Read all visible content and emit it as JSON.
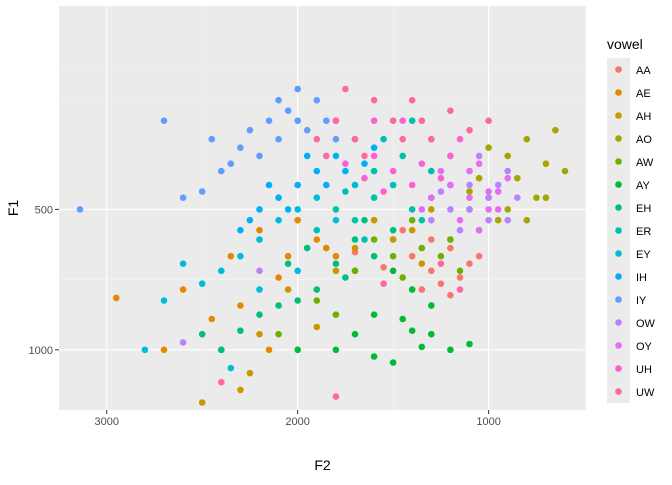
{
  "chart_data": {
    "type": "scatter",
    "title": "",
    "xlabel": "F2",
    "ylabel": "F1",
    "x_axis": {
      "reversed": true,
      "range": [
        3250,
        490
      ],
      "ticks": [
        3000,
        2000,
        1000
      ],
      "tick_labels": [
        "3000",
        "2000",
        "1000"
      ]
    },
    "y_axis": {
      "scale": "reciprocal",
      "reversed": true,
      "range": [
        290,
        1750
      ],
      "ticks": [
        500,
        1000
      ],
      "tick_labels": [
        "500",
        "1000"
      ],
      "minor_ticks": [
        357,
        333.3,
        666.7,
        2000
      ]
    },
    "grid": true,
    "legend": {
      "title": "vowel",
      "placement": "right",
      "entries": [
        {
          "name": "AA",
          "color": "#F8766D"
        },
        {
          "name": "AE",
          "color": "#E58700"
        },
        {
          "name": "AH",
          "color": "#C99800"
        },
        {
          "name": "AO",
          "color": "#A3A500"
        },
        {
          "name": "AW",
          "color": "#6BB100"
        },
        {
          "name": "AY",
          "color": "#00BA38"
        },
        {
          "name": "EH",
          "color": "#00BF7D"
        },
        {
          "name": "ER",
          "color": "#00C0AF"
        },
        {
          "name": "EY",
          "color": "#00BCD8"
        },
        {
          "name": "IH",
          "color": "#00B0F6"
        },
        {
          "name": "IY",
          "color": "#619CFF"
        },
        {
          "name": "OW",
          "color": "#B983FF"
        },
        {
          "name": "OY",
          "color": "#E76BF3"
        },
        {
          "name": "UH",
          "color": "#FD61D1"
        },
        {
          "name": "UW",
          "color": "#FF67A4"
        }
      ]
    },
    "series": [
      {
        "name": "AA",
        "points": [
          [
            1500,
            560
          ],
          [
            1400,
            600
          ],
          [
            1300,
            640
          ],
          [
            1200,
            580
          ],
          [
            1100,
            620
          ],
          [
            1600,
            520
          ],
          [
            1350,
            700
          ],
          [
            1250,
            680
          ],
          [
            1450,
            540
          ],
          [
            1150,
            660
          ],
          [
            1050,
            600
          ],
          [
            1700,
            590
          ],
          [
            1550,
            630
          ],
          [
            1300,
            560
          ],
          [
            1200,
            720
          ]
        ]
      },
      {
        "name": "AE",
        "points": [
          [
            1900,
            560
          ],
          [
            1800,
            600
          ],
          [
            2000,
            520
          ],
          [
            2200,
            540
          ],
          [
            2350,
            600
          ],
          [
            2600,
            700
          ],
          [
            2700,
            1000
          ],
          [
            2950,
            730
          ],
          [
            2100,
            660
          ],
          [
            1700,
            640
          ],
          [
            2300,
            760
          ],
          [
            2450,
            820
          ],
          [
            2150,
            1000
          ],
          [
            1850,
            580
          ],
          [
            2050,
            600
          ]
        ]
      },
      {
        "name": "AH",
        "points": [
          [
            1600,
            520
          ],
          [
            1500,
            560
          ],
          [
            1400,
            540
          ],
          [
            1700,
            580
          ],
          [
            1800,
            640
          ],
          [
            2050,
            700
          ],
          [
            2300,
            1400
          ],
          [
            2500,
            1600
          ],
          [
            2400,
            1000
          ],
          [
            2200,
            900
          ],
          [
            1300,
            500
          ],
          [
            1200,
            560
          ],
          [
            1900,
            860
          ],
          [
            2250,
            1200
          ],
          [
            1350,
            620
          ]
        ]
      },
      {
        "name": "AO",
        "points": [
          [
            900,
            420
          ],
          [
            850,
            450
          ],
          [
            800,
            400
          ],
          [
            700,
            430
          ],
          [
            750,
            480
          ],
          [
            600,
            440
          ],
          [
            950,
            520
          ],
          [
            1000,
            480
          ],
          [
            650,
            390
          ],
          [
            1050,
            450
          ],
          [
            800,
            520
          ],
          [
            900,
            500
          ],
          [
            1100,
            470
          ],
          [
            1000,
            410
          ],
          [
            700,
            480
          ]
        ]
      },
      {
        "name": "AW",
        "points": [
          [
            1400,
            520
          ],
          [
            1300,
            480
          ],
          [
            1200,
            560
          ],
          [
            1100,
            500
          ],
          [
            1500,
            600
          ],
          [
            1600,
            560
          ],
          [
            1700,
            640
          ],
          [
            1900,
            740
          ],
          [
            2100,
            900
          ],
          [
            1800,
            800
          ],
          [
            1250,
            600
          ],
          [
            1150,
            640
          ],
          [
            1350,
            580
          ],
          [
            1450,
            660
          ],
          [
            1050,
            540
          ]
        ]
      },
      {
        "name": "AY",
        "points": [
          [
            1500,
            640
          ],
          [
            1400,
            700
          ],
          [
            1300,
            760
          ],
          [
            1600,
            800
          ],
          [
            1700,
            900
          ],
          [
            1800,
            1000
          ],
          [
            1500,
            1100
          ],
          [
            1400,
            880
          ],
          [
            1300,
            900
          ],
          [
            1200,
            1000
          ],
          [
            1100,
            960
          ],
          [
            1600,
            1050
          ],
          [
            2000,
            1000
          ],
          [
            1450,
            820
          ],
          [
            1350,
            980
          ]
        ]
      },
      {
        "name": "EH",
        "points": [
          [
            1700,
            560
          ],
          [
            1600,
            600
          ],
          [
            1800,
            620
          ],
          [
            1900,
            700
          ],
          [
            2000,
            740
          ],
          [
            2200,
            800
          ],
          [
            2400,
            1000
          ],
          [
            2500,
            900
          ],
          [
            1500,
            540
          ],
          [
            1750,
            660
          ],
          [
            2100,
            760
          ],
          [
            2300,
            880
          ],
          [
            2050,
            620
          ],
          [
            1650,
            520
          ],
          [
            1950,
            580
          ]
        ]
      },
      {
        "name": "ER",
        "points": [
          [
            1500,
            460
          ],
          [
            1600,
            480
          ],
          [
            1400,
            500
          ],
          [
            1700,
            520
          ],
          [
            1300,
            440
          ],
          [
            1550,
            400
          ],
          [
            1800,
            500
          ],
          [
            1650,
            560
          ],
          [
            1450,
            420
          ],
          [
            1750,
            470
          ],
          [
            1350,
            520
          ],
          [
            1200,
            460
          ],
          [
            1600,
            440
          ],
          [
            1900,
            540
          ],
          [
            1400,
            380
          ]
        ]
      },
      {
        "name": "EY",
        "points": [
          [
            2000,
            500
          ],
          [
            2100,
            520
          ],
          [
            2200,
            560
          ],
          [
            1900,
            480
          ],
          [
            2300,
            600
          ],
          [
            2400,
            640
          ],
          [
            2500,
            680
          ],
          [
            2600,
            620
          ],
          [
            2700,
            740
          ],
          [
            2800,
            1000
          ],
          [
            2200,
            700
          ],
          [
            2000,
            640
          ],
          [
            1800,
            520
          ],
          [
            1700,
            460
          ],
          [
            2350,
            1150
          ]
        ]
      },
      {
        "name": "IH",
        "points": [
          [
            2000,
            460
          ],
          [
            1900,
            440
          ],
          [
            2100,
            480
          ],
          [
            1800,
            420
          ],
          [
            2200,
            500
          ],
          [
            1700,
            400
          ],
          [
            2300,
            540
          ],
          [
            1850,
            460
          ],
          [
            2050,
            500
          ],
          [
            1950,
            420
          ],
          [
            1750,
            440
          ],
          [
            2150,
            460
          ],
          [
            1650,
            430
          ],
          [
            2250,
            520
          ],
          [
            1600,
            410
          ]
        ]
      },
      {
        "name": "IY",
        "points": [
          [
            2000,
            380
          ],
          [
            2100,
            400
          ],
          [
            2200,
            420
          ],
          [
            2300,
            410
          ],
          [
            1900,
            360
          ],
          [
            2000,
            350
          ],
          [
            2400,
            440
          ],
          [
            2500,
            470
          ],
          [
            2600,
            480
          ],
          [
            2700,
            380
          ],
          [
            2050,
            370
          ],
          [
            1950,
            390
          ],
          [
            2150,
            380
          ],
          [
            3140,
            500
          ],
          [
            2250,
            390
          ],
          [
            1850,
            380
          ],
          [
            2350,
            430
          ],
          [
            2100,
            360
          ],
          [
            2450,
            400
          ],
          [
            1800,
            400
          ]
        ]
      },
      {
        "name": "OW",
        "points": [
          [
            1100,
            460
          ],
          [
            1000,
            480
          ],
          [
            900,
            440
          ],
          [
            1200,
            500
          ],
          [
            1300,
            520
          ],
          [
            1000,
            520
          ],
          [
            950,
            460
          ],
          [
            1050,
            420
          ],
          [
            1150,
            540
          ],
          [
            850,
            480
          ],
          [
            2600,
            950
          ],
          [
            2200,
            640
          ],
          [
            1100,
            500
          ],
          [
            1250,
            470
          ],
          [
            900,
            520
          ]
        ]
      },
      {
        "name": "OY",
        "points": [
          [
            1200,
            460
          ],
          [
            1100,
            440
          ],
          [
            1000,
            500
          ],
          [
            1300,
            480
          ],
          [
            1050,
            430
          ],
          [
            950,
            470
          ],
          [
            1150,
            520
          ],
          [
            1250,
            440
          ],
          [
            1000,
            470
          ],
          [
            900,
            450
          ],
          [
            1350,
            500
          ],
          [
            1100,
            480
          ],
          [
            1200,
            420
          ],
          [
            1050,
            540
          ],
          [
            950,
            500
          ]
        ]
      },
      {
        "name": "UH",
        "points": [
          [
            1500,
            440
          ],
          [
            1400,
            460
          ],
          [
            1600,
            420
          ],
          [
            1300,
            400
          ],
          [
            1700,
            400
          ],
          [
            1200,
            420
          ],
          [
            1450,
            380
          ],
          [
            1550,
            470
          ],
          [
            1350,
            430
          ],
          [
            1650,
            450
          ],
          [
            1250,
            450
          ],
          [
            1750,
            430
          ],
          [
            1150,
            400
          ],
          [
            1800,
            380
          ],
          [
            1600,
            380
          ]
        ]
      },
      {
        "name": "UW",
        "points": [
          [
            1700,
            400
          ],
          [
            1800,
            380
          ],
          [
            1600,
            360
          ],
          [
            1900,
            400
          ],
          [
            1500,
            380
          ],
          [
            1400,
            360
          ],
          [
            1300,
            400
          ],
          [
            1200,
            370
          ],
          [
            1100,
            390
          ],
          [
            1000,
            380
          ],
          [
            1750,
            350
          ],
          [
            1650,
            420
          ],
          [
            1850,
            420
          ],
          [
            1450,
            400
          ],
          [
            1350,
            380
          ],
          [
            1800,
            1500
          ],
          [
            2400,
            1300
          ],
          [
            1150,
            700
          ],
          [
            1250,
            620
          ],
          [
            1550,
            680
          ]
        ]
      }
    ]
  }
}
